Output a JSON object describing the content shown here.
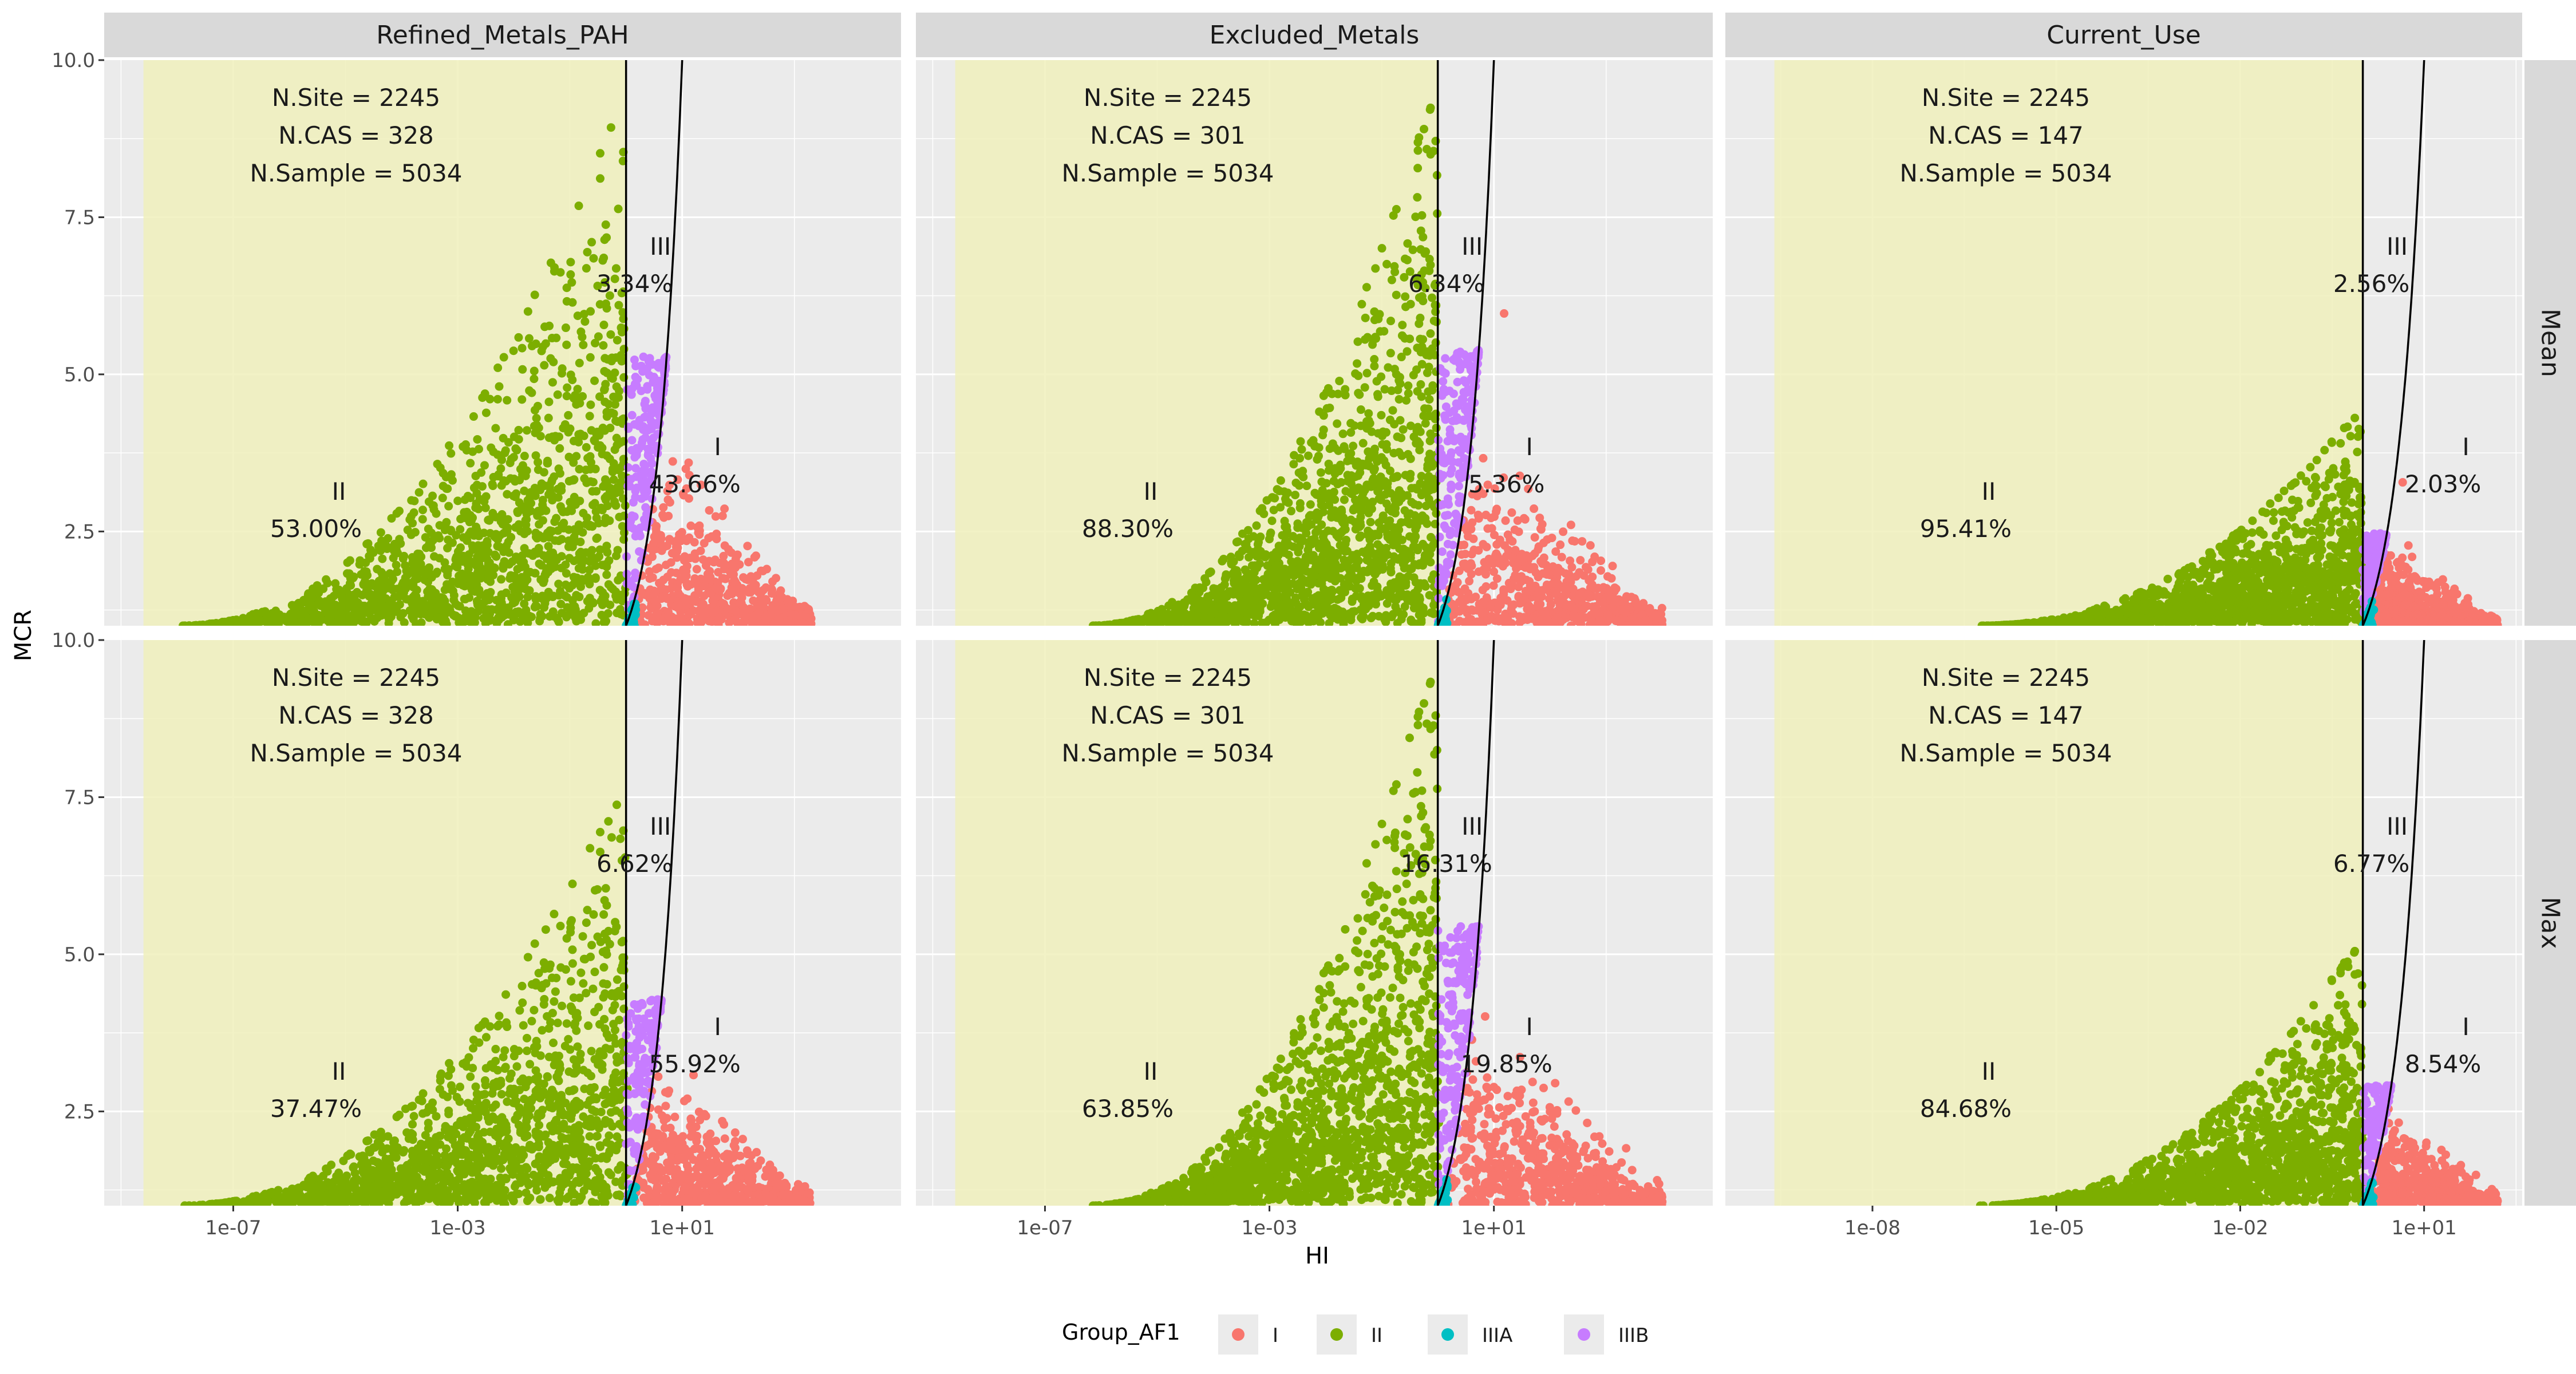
{
  "chart_data": {
    "type": "scatter",
    "x_label": "HI",
    "y_label": "MCR",
    "x_scale": "log10",
    "y_range": [
      1,
      10
    ],
    "y_ticks": [
      2.5,
      5.0,
      7.5,
      10.0
    ],
    "y_tick_labels": [
      "2.5",
      "5.0",
      "7.5",
      "10.0"
    ],
    "grid": true,
    "legend": {
      "position": "bottom",
      "title": "Group_AF1",
      "items": [
        {
          "label": "I",
          "color": "#F8766D"
        },
        {
          "label": "II",
          "color": "#7CAE00"
        },
        {
          "label": "IIIA",
          "color": "#00BFC4"
        },
        {
          "label": "IIIB",
          "color": "#C77CFF"
        }
      ]
    },
    "shading_color": "#f0f0bc",
    "rows": [
      "Mean",
      "Max"
    ],
    "columns": [
      {
        "name": "Refined_Metals_PAH",
        "xlim_log10": [
          -9.3,
          4.9
        ],
        "shade_from_log10": -8.6,
        "x_ticks": [
          -7,
          -3,
          1
        ],
        "x_tick_labels": [
          "1e-07",
          "1e-03",
          "1e+01"
        ],
        "x_min_log10": -8.0,
        "x_max_log10": 3.3
      },
      {
        "name": "Excluded_Metals",
        "xlim_log10": [
          -9.3,
          4.9
        ],
        "shade_from_log10": -8.6,
        "x_ticks": [
          -7,
          -3,
          1
        ],
        "x_tick_labels": [
          "1e-07",
          "1e-03",
          "1e+01"
        ],
        "x_min_log10": -6.2,
        "x_max_log10": 4.0
      },
      {
        "name": "Current_Use",
        "xlim_log10": [
          -10.4,
          2.6
        ],
        "shade_from_log10": -9.6,
        "x_ticks": [
          -8,
          -5,
          -2,
          1
        ],
        "x_tick_labels": [
          "1e-08",
          "1e-05",
          "1e-02",
          "1e+01"
        ],
        "x_min_log10": -6.3,
        "x_max_log10": 2.2
      }
    ],
    "boundary": {
      "vertical_line_x": 1,
      "curve": "MCR = HI"
    },
    "annotation_labels": {
      "site": "N.Site = ",
      "cas": "N.CAS = ",
      "sample": "N.Sample = "
    },
    "panels": [
      {
        "row": "Mean",
        "column": "Refined_Metals_PAH",
        "n_site": 2245,
        "n_cas": 328,
        "n_sample": 5034,
        "group_I_pct": "43.66%",
        "group_II_pct": "53.00%",
        "group_III_pct": "3.34%",
        "max_mcr": 9.6
      },
      {
        "row": "Mean",
        "column": "Excluded_Metals",
        "n_site": 2245,
        "n_cas": 301,
        "n_sample": 5034,
        "group_I_pct": "5.36%",
        "group_II_pct": "88.30%",
        "group_III_pct": "6.34%",
        "max_mcr": 9.8
      },
      {
        "row": "Mean",
        "column": "Current_Use",
        "n_site": 2245,
        "n_cas": 147,
        "n_sample": 5034,
        "group_I_pct": "2.03%",
        "group_II_pct": "95.41%",
        "group_III_pct": "2.56%",
        "max_mcr": 4.5
      },
      {
        "row": "Max",
        "column": "Refined_Metals_PAH",
        "n_site": 2245,
        "n_cas": 328,
        "n_sample": 5034,
        "group_I_pct": "55.92%",
        "group_II_pct": "37.47%",
        "group_III_pct": "6.62%",
        "max_mcr": 7.8
      },
      {
        "row": "Max",
        "column": "Excluded_Metals",
        "n_site": 2245,
        "n_cas": 301,
        "n_sample": 5034,
        "group_I_pct": "19.85%",
        "group_II_pct": "63.85%",
        "group_III_pct": "16.31%",
        "max_mcr": 9.9
      },
      {
        "row": "Max",
        "column": "Current_Use",
        "n_site": 2245,
        "n_cas": 147,
        "n_sample": 5034,
        "group_I_pct": "8.54%",
        "group_II_pct": "84.68%",
        "group_III_pct": "6.77%",
        "max_mcr": 5.3
      }
    ],
    "group_labels": {
      "I": "I",
      "II": "II",
      "III": "III"
    }
  }
}
